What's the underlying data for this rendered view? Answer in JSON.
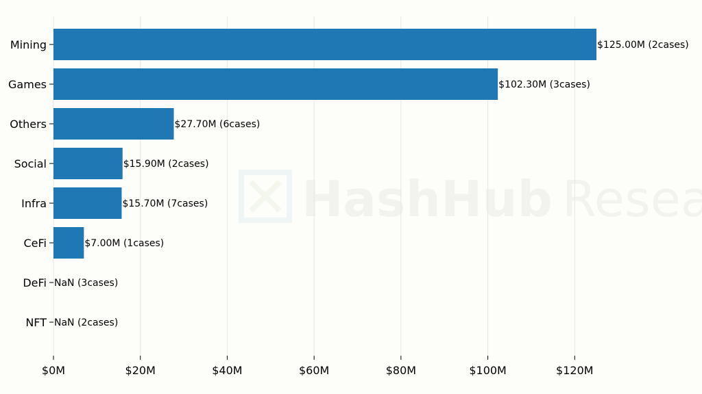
{
  "chart_data": {
    "type": "bar",
    "orientation": "horizontal",
    "categories": [
      "Mining",
      "Games",
      "Others",
      "Social",
      "Infra",
      "CeFi",
      "DeFi",
      "NFT"
    ],
    "values": [
      125.0,
      102.3,
      27.7,
      15.9,
      15.7,
      7.0,
      null,
      null
    ],
    "data_labels": [
      "$125.00M (2cases)",
      "$102.30M (3cases)",
      "$27.70M (6cases)",
      "$15.90M (2cases)",
      "$15.70M (7cases)",
      "$7.00M (1cases)",
      "NaN (3cases)",
      "NaN (2cases)"
    ],
    "x_ticks": [
      0,
      20,
      40,
      60,
      80,
      100,
      120
    ],
    "x_tick_labels": [
      "$0M",
      "$20M",
      "$40M",
      "$60M",
      "$80M",
      "$100M",
      "$120M"
    ],
    "xlim": [
      0,
      125
    ],
    "title": "",
    "xlabel": "",
    "ylabel": "",
    "grid": "vertical",
    "bar_color": "#1f77b4"
  },
  "watermark": {
    "text_bold": "HashHub",
    "text_light": "Research"
  }
}
